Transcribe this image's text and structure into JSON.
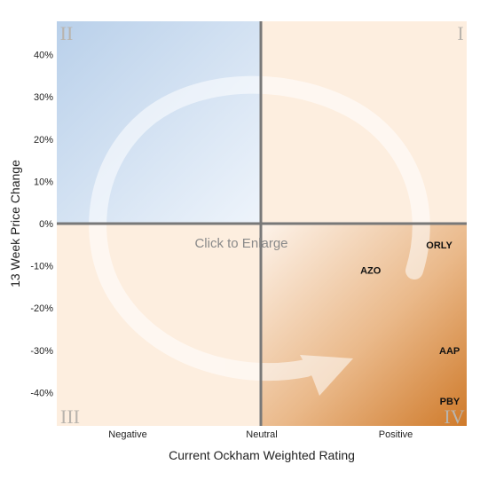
{
  "chart_data": {
    "type": "scatter",
    "title": "",
    "xlabel": "Current Ockham Weighted Rating",
    "ylabel": "13 Week Price Change",
    "x_categories": [
      "Negative",
      "Neutral",
      "Positive"
    ],
    "xlim": [
      -1.5,
      1.5
    ],
    "ylim": [
      -47,
      48
    ],
    "y_ticks": [
      40,
      30,
      20,
      10,
      0,
      -10,
      -20,
      -30,
      -40
    ],
    "y_tick_labels": [
      "40%",
      "30%",
      "20%",
      "10%",
      "0%",
      "-10%",
      "-20%",
      "-30%",
      "-40%"
    ],
    "quadrant_labels": [
      "I",
      "II",
      "III",
      "IV"
    ],
    "points": [
      {
        "label": "ORLY",
        "x": 1.3,
        "y": -5
      },
      {
        "label": "AZO",
        "x": 0.8,
        "y": -11
      },
      {
        "label": "AAP",
        "x": 1.45,
        "y": -30
      },
      {
        "label": "PBY",
        "x": 1.45,
        "y": -42
      }
    ],
    "overlay_text": "Click to Enlarge",
    "colors": {
      "quadrant_blue": "#c6d8ec",
      "quadrant_peach": "#fdefe1",
      "quadrant_orange": "#d98a3c",
      "axis_line": "#777777"
    },
    "grid": false
  }
}
